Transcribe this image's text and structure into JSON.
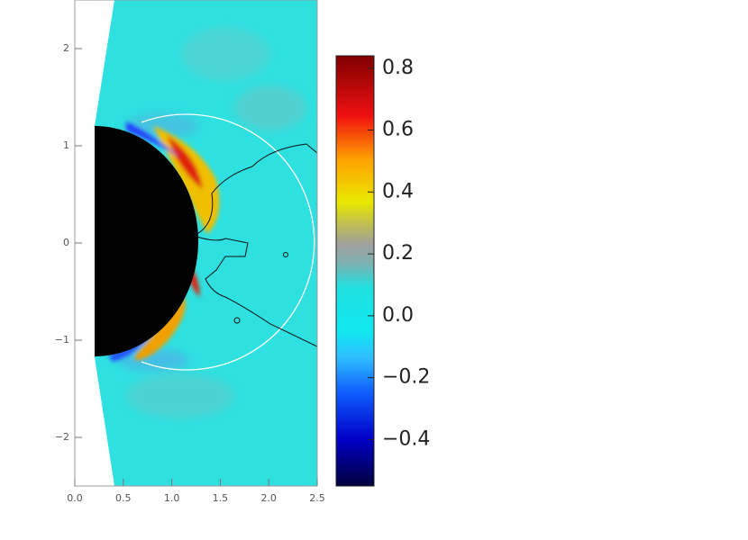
{
  "chart_data": {
    "type": "heatmap",
    "xlim": [
      0,
      2.5
    ],
    "xticks": [
      {
        "value": 0,
        "label": "0.0"
      },
      0.5,
      {
        "value": 1,
        "label": "1.0"
      },
      1.5,
      {
        "value": 2,
        "label": "2.0"
      },
      2.5
    ],
    "ylim": [
      -2.5,
      2.5
    ],
    "yticks": [
      2,
      1,
      0,
      {
        "value": -1,
        "label": "−1"
      },
      {
        "value": -2,
        "label": "−2"
      }
    ],
    "colorbar": {
      "lim": [
        -0.55,
        0.84
      ],
      "ticks": [
        0.8,
        0.6,
        0.4,
        0.2,
        {
          "value": 0,
          "label": "0.0"
        },
        {
          "value": -0.2,
          "label": "−0.2"
        },
        {
          "value": -0.4,
          "label": "−0.4"
        }
      ]
    }
  }
}
